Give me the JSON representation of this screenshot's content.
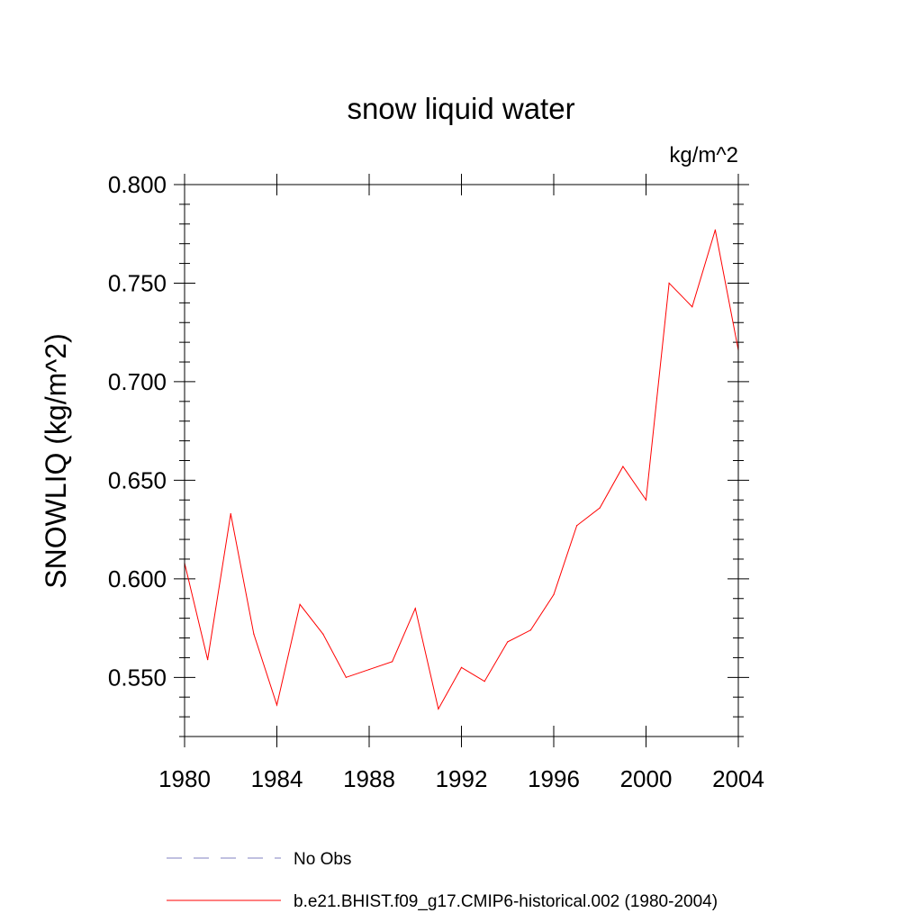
{
  "chart_data": {
    "type": "line",
    "title": "snow liquid water",
    "units_label": "kg/m^2",
    "xlabel": "",
    "ylabel": "SNOWLIQ  (kg/m^2)",
    "xlim": [
      1980,
      2004
    ],
    "ylim": [
      0.52,
      0.8
    ],
    "x_ticks": [
      1980,
      1984,
      1988,
      1992,
      1996,
      2000,
      2004
    ],
    "x_tick_labels": [
      "1980",
      "1984",
      "1988",
      "1992",
      "1996",
      "2000",
      "2004"
    ],
    "y_ticks": [
      0.55,
      0.6,
      0.65,
      0.7,
      0.75,
      0.8
    ],
    "y_tick_labels": [
      "0.550",
      "0.600",
      "0.650",
      "0.700",
      "0.750",
      "0.800"
    ],
    "series": [
      {
        "name": "b.e21.BHIST.f09_g17.CMIP6-historical.002 (1980-2004)",
        "color": "#ff0000",
        "style": "solid",
        "x": [
          1980,
          1981,
          1982,
          1983,
          1984,
          1985,
          1986,
          1987,
          1988,
          1989,
          1990,
          1991,
          1992,
          1993,
          1994,
          1995,
          1996,
          1997,
          1998,
          1999,
          2000,
          2001,
          2002,
          2003,
          2004
        ],
        "values": [
          0.608,
          0.559,
          0.633,
          0.572,
          0.536,
          0.587,
          0.572,
          0.55,
          0.554,
          0.558,
          0.585,
          0.534,
          0.555,
          0.548,
          0.568,
          0.574,
          0.592,
          0.627,
          0.636,
          0.657,
          0.64,
          0.75,
          0.738,
          0.777,
          0.716
        ]
      }
    ],
    "legend": [
      {
        "label": "No Obs",
        "color": "#8080c0",
        "style": "dashed"
      },
      {
        "label": "b.e21.BHIST.f09_g17.CMIP6-historical.002 (1980-2004)",
        "color": "#ff0000",
        "style": "solid"
      }
    ]
  }
}
